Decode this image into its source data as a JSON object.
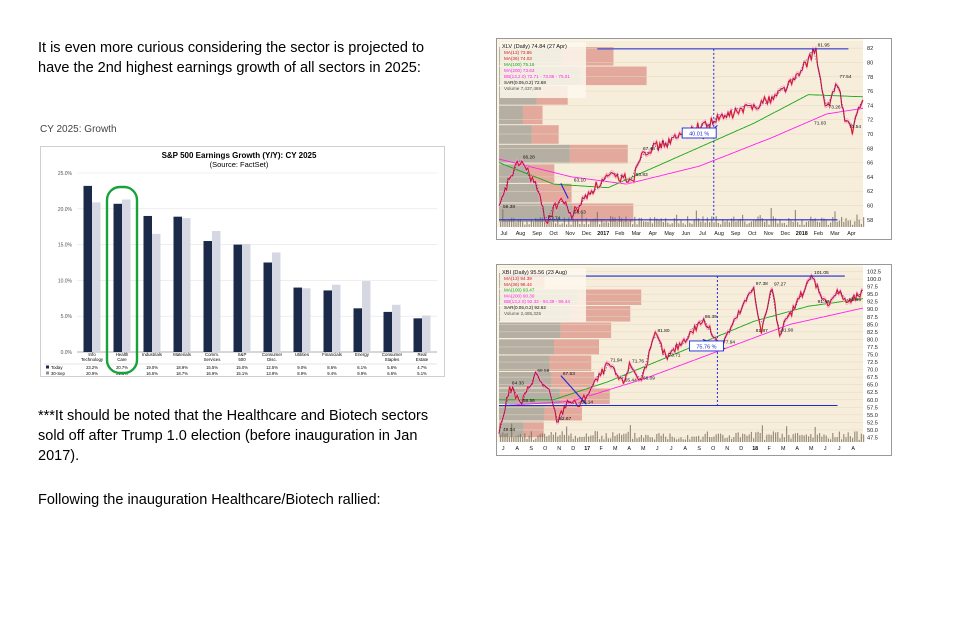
{
  "slide": {
    "paragraph1": "It is even more curious considering the sector is projected to have the 2nd highest earnings growth of all sectors in 2025:",
    "caption": "CY 2025: Growth",
    "paragraph2": "***It should be noted that the Healthcare and Biotech sectors sold off after Trump 1.0 election (before inauguration in Jan 2017).",
    "paragraph3": "Following the inauguration Healthcare/Biotech rallied:"
  },
  "chart_data": [
    {
      "type": "bar",
      "title": "S&P 500 Earnings Growth (Y/Y): CY 2025",
      "subtitle": "(Source: FactSet)",
      "categories": [
        "Info Technology",
        "Health Care",
        "Industrials",
        "Materials",
        "Comm. Services",
        "S&P 500",
        "Consumer Disc.",
        "Utilities",
        "Financials",
        "Energy",
        "Consumer Staples",
        "Real Estate"
      ],
      "series": [
        {
          "name": "Today",
          "color": "#1c2a4a",
          "values": [
            23.2,
            20.7,
            19.0,
            18.9,
            15.5,
            15.0,
            12.5,
            9.0,
            8.6,
            6.1,
            5.6,
            4.7
          ],
          "labels": [
            "23.2%",
            "20.7%",
            "19.0%",
            "18.9%",
            "15.5%",
            "15.0%",
            "12.5%",
            "9.0%",
            "8.6%",
            "6.1%",
            "5.6%",
            "4.7%"
          ]
        },
        {
          "name": "30-Sep",
          "color": "#d5d8e2",
          "values": [
            20.9,
            21.3,
            16.5,
            18.7,
            16.9,
            15.1,
            13.9,
            8.9,
            9.4,
            9.9,
            6.6,
            5.1
          ],
          "labels": [
            "20.9%",
            "21.3%",
            "16.5%",
            "18.7%",
            "16.9%",
            "15.1%",
            "13.9%",
            "8.9%",
            "9.4%",
            "9.9%",
            "6.6%",
            "5.1%"
          ]
        }
      ],
      "yticks": [
        "25.0%",
        "20.0%",
        "15.0%",
        "10.0%",
        "5.0%",
        "0.0%"
      ],
      "ylim": [
        0,
        25
      ],
      "highlight": "Health Care"
    },
    {
      "type": "line",
      "title": "XLV (Daily) 74.84 (27 Apr)",
      "legend": [
        "MA(13) 73.86",
        "MA(36) 74.03",
        "MA(100) 75.16",
        "MA(200) 73.63",
        "BB(13,2.0) 72.71 - 73.86 - 75.01",
        "SAR(0.05,0.2) 72.68",
        "Volume 7,437,469"
      ],
      "x_labels": [
        "Jul",
        "Aug",
        "Sep",
        "Oct",
        "Nov",
        "Dec",
        "2017",
        "Feb",
        "Mar",
        "Apr",
        "May",
        "Jun",
        "Jul",
        "Aug",
        "Sep",
        "Oct",
        "Nov",
        "Dec",
        "2018",
        "Feb",
        "Mar",
        "Apr"
      ],
      "y_ticks": [
        58,
        60,
        62,
        64,
        66,
        68,
        70,
        72,
        74,
        76,
        78,
        80,
        82
      ],
      "ylim": [
        57,
        83
      ],
      "price_labels": [
        {
          "text": "66.28",
          "t": 0.06,
          "v": 66.28
        },
        {
          "text": "59.38",
          "t": 0.0,
          "v": 59.38
        },
        {
          "text": "57.74",
          "t": 0.13,
          "v": 57.74
        },
        {
          "text": "58.63",
          "t": 0.2,
          "v": 58.63
        },
        {
          "text": "63.10",
          "t": 0.2,
          "v": 63.1
        },
        {
          "text": "63.83",
          "t": 0.37,
          "v": 63.83
        },
        {
          "text": "67.48",
          "t": 0.39,
          "v": 67.48
        },
        {
          "text": "81.95",
          "t": 0.87,
          "v": 81.95
        },
        {
          "text": "77.54",
          "t": 0.93,
          "v": 77.54
        },
        {
          "text": "73.26",
          "t": 0.9,
          "v": 73.26
        },
        {
          "text": "71.03",
          "t": 0.86,
          "v": 71.03
        },
        {
          "text": "70.54",
          "t": 0.97,
          "v": 70.54
        }
      ],
      "annotation": "40.01 %"
    },
    {
      "type": "line",
      "title": "XBI (Daily) 95.56 (23 Aug)",
      "legend": [
        "MA(13) 94.39",
        "MA(36) 96.44",
        "MA(100) 93.47",
        "MA(200) 90.39",
        "BB(13,2.0) 92.33 - 94.39 - 96.44",
        "SAR(0.05,0.2) 92.62",
        "Volume 2,485,325"
      ],
      "x_labels": [
        "J",
        "A",
        "S",
        "O",
        "N",
        "D",
        "17",
        "F",
        "M",
        "A",
        "M",
        "J",
        "J",
        "A",
        "S",
        "O",
        "N",
        "D",
        "18",
        "F",
        "M",
        "A",
        "M",
        "J",
        "J",
        "A"
      ],
      "y_ticks": [
        47.5,
        50.0,
        52.5,
        55.0,
        57.5,
        60.0,
        62.5,
        65.0,
        67.5,
        70.0,
        72.5,
        75.0,
        77.5,
        80.0,
        82.5,
        85.0,
        87.5,
        90.0,
        92.5,
        95.0,
        97.5,
        100.0,
        102.5
      ],
      "ylim": [
        46,
        104
      ],
      "price_labels": [
        {
          "text": "49.04",
          "t": 0.0,
          "v": 49.04
        },
        {
          "text": "64.33",
          "t": 0.03,
          "v": 64.33
        },
        {
          "text": "68.58",
          "t": 0.1,
          "v": 68.58
        },
        {
          "text": "58.56",
          "t": 0.06,
          "v": 58.56
        },
        {
          "text": "67.53",
          "t": 0.17,
          "v": 67.53
        },
        {
          "text": "52.67",
          "t": 0.16,
          "v": 52.67
        },
        {
          "text": "58.14",
          "t": 0.22,
          "v": 58.14
        },
        {
          "text": "71.94",
          "t": 0.3,
          "v": 71.94
        },
        {
          "text": "71.76",
          "t": 0.36,
          "v": 71.76
        },
        {
          "text": "65.44",
          "t": 0.34,
          "v": 65.44
        },
        {
          "text": "66.09",
          "t": 0.39,
          "v": 66.09
        },
        {
          "text": "73.71",
          "t": 0.46,
          "v": 73.71
        },
        {
          "text": "81.80",
          "t": 0.43,
          "v": 81.8
        },
        {
          "text": "86.39",
          "t": 0.56,
          "v": 86.39
        },
        {
          "text": "77.94",
          "t": 0.61,
          "v": 77.94
        },
        {
          "text": "97.38",
          "t": 0.7,
          "v": 97.38
        },
        {
          "text": "97.27",
          "t": 0.75,
          "v": 97.27
        },
        {
          "text": "81.87",
          "t": 0.7,
          "v": 81.87
        },
        {
          "text": "81.90",
          "t": 0.77,
          "v": 81.9
        },
        {
          "text": "101.05",
          "t": 0.86,
          "v": 101.05
        },
        {
          "text": "91.46",
          "t": 0.87,
          "v": 91.46
        },
        {
          "text": "92.05",
          "t": 0.96,
          "v": 92.05
        }
      ],
      "annotation": "75.76 %"
    }
  ]
}
